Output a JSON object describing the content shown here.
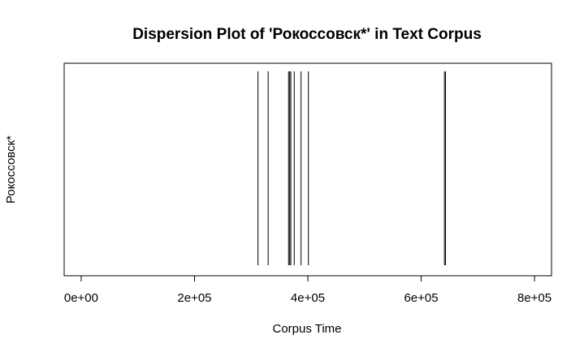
{
  "chart_data": {
    "type": "dispersion",
    "title": "Dispersion Plot of 'Рокоссовск*' in Text Corpus",
    "xlabel": "Corpus Time",
    "ylabel": "Рокоссовск*",
    "xlim": [
      -30000,
      830000
    ],
    "x_ticks": [
      0,
      200000,
      400000,
      600000,
      800000
    ],
    "x_tick_labels": [
      "0e+00",
      "2e+05",
      "4e+05",
      "6e+05",
      "8e+05"
    ],
    "positions": [
      312000,
      330000,
      366000,
      368000,
      370000,
      376000,
      388000,
      401000,
      641000,
      643000
    ],
    "colors": {
      "line": "#000000",
      "background": "#ffffff"
    }
  }
}
